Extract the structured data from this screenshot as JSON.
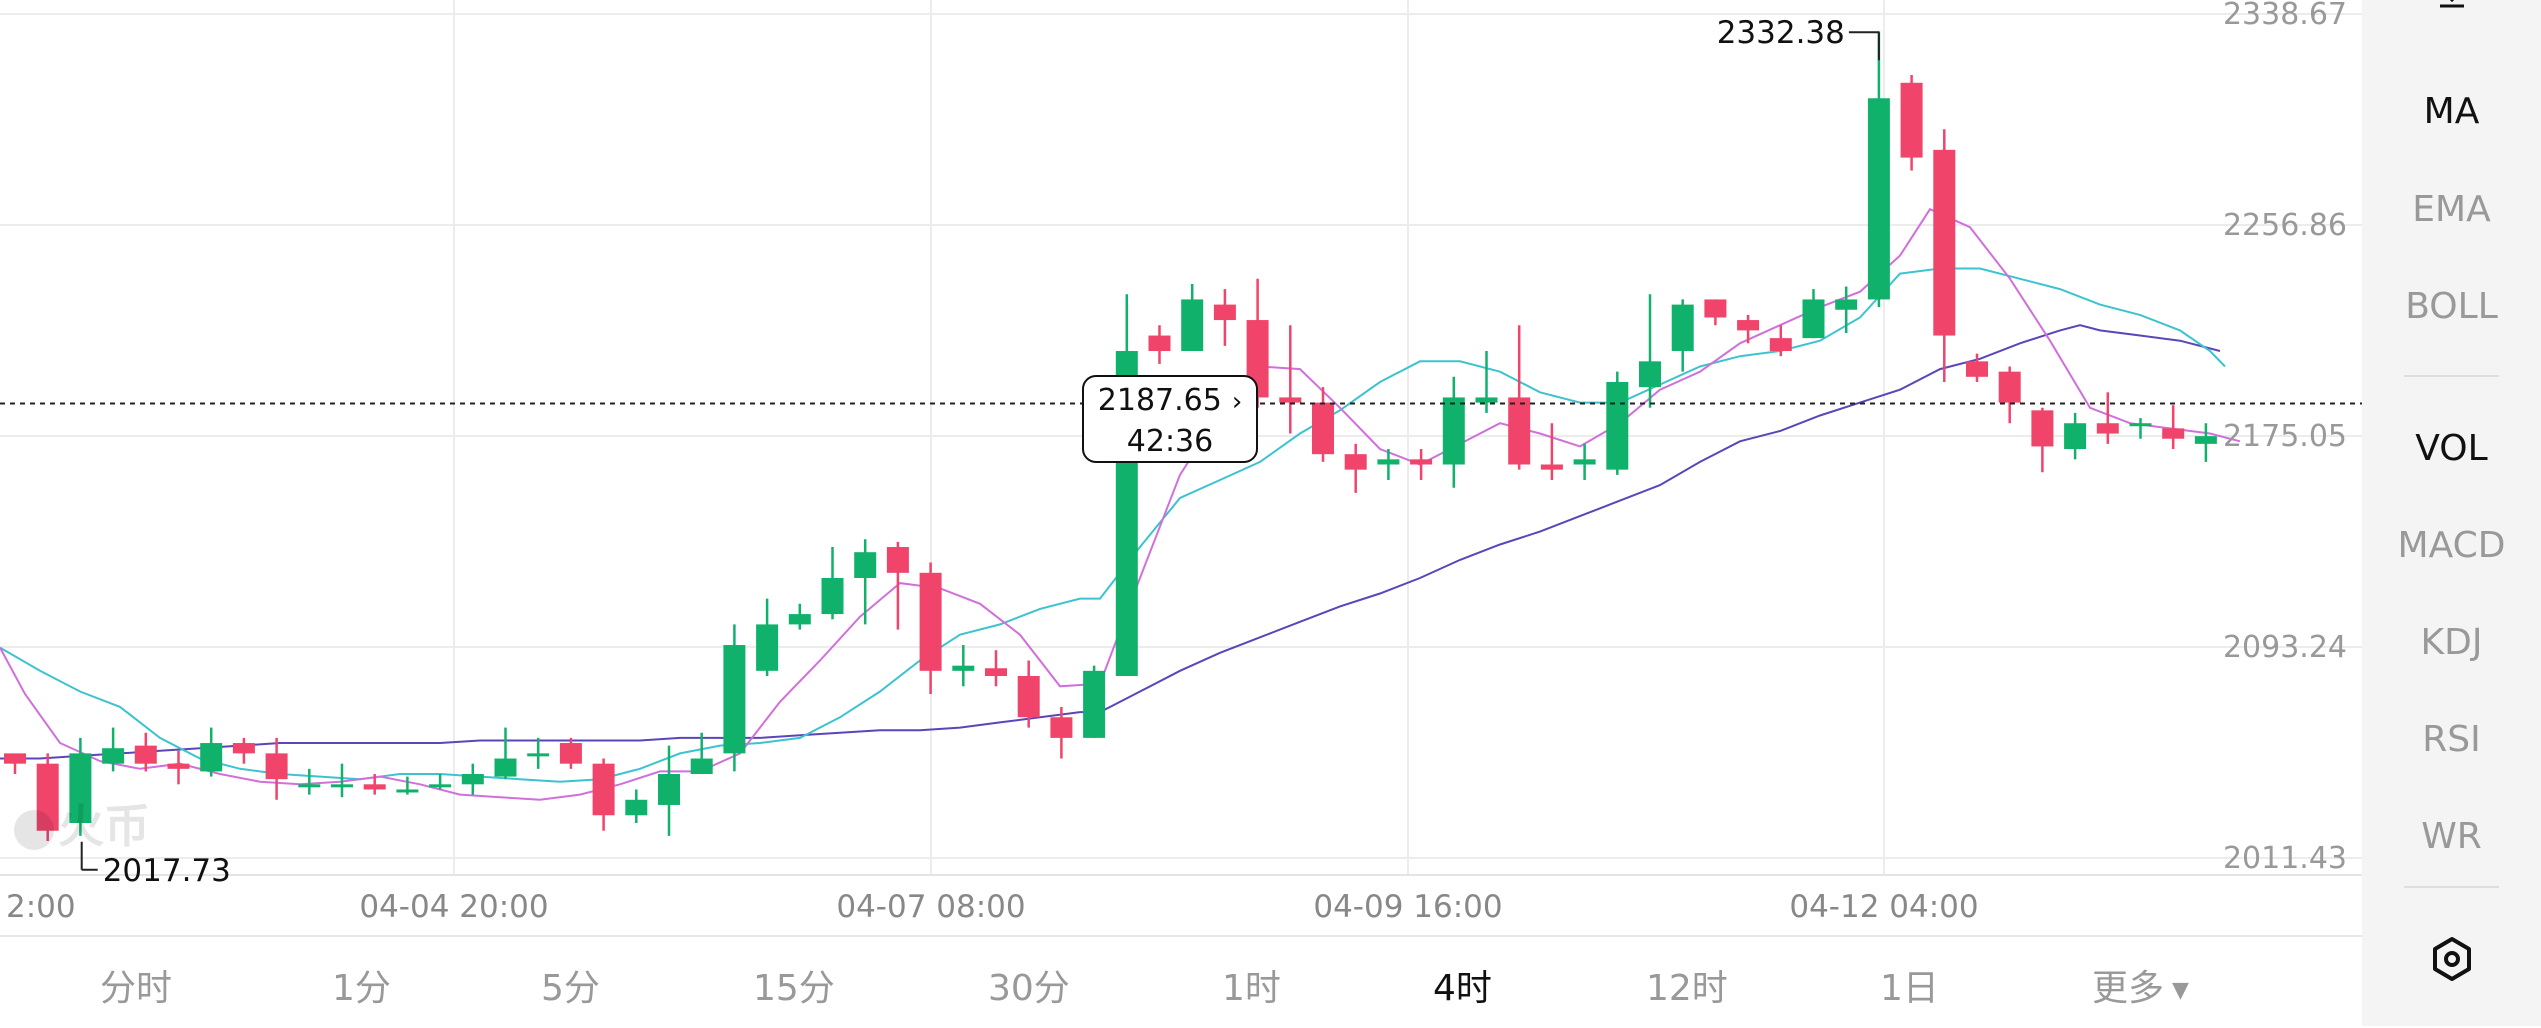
{
  "chart_data": {
    "type": "candlestick",
    "interval": "4时",
    "y_ticks": [
      "2338.67",
      "2256.86",
      "2175.05",
      "2093.24",
      "2011.43"
    ],
    "ylim": [
      2003,
      2341
    ],
    "x_ticks": [
      "2:00",
      "04-04 20:00",
      "04-07 08:00",
      "04-09 16:00",
      "04-12 04:00"
    ],
    "current_price": 2187.65,
    "countdown": "42:36",
    "max_label": "2332.38",
    "min_label": "2017.73",
    "candles": [
      [
        2052,
        2048,
        2050,
        2044
      ],
      [
        2048,
        2022,
        2052,
        2018
      ],
      [
        2025,
        2052,
        2058,
        2020
      ],
      [
        2048,
        2054,
        2062,
        2045
      ],
      [
        2055,
        2048,
        2060,
        2045
      ],
      [
        2048,
        2046,
        2053,
        2040
      ],
      [
        2045,
        2056,
        2062,
        2043
      ],
      [
        2056,
        2052,
        2058,
        2048
      ],
      [
        2052,
        2042,
        2058,
        2034
      ],
      [
        2040,
        2040,
        2046,
        2036
      ],
      [
        2040,
        2040,
        2048,
        2035
      ],
      [
        2040,
        2038,
        2044,
        2036
      ],
      [
        2038,
        2038,
        2043,
        2036
      ],
      [
        2040,
        2040,
        2044,
        2038
      ],
      [
        2040,
        2044,
        2048,
        2036
      ],
      [
        2043,
        2050,
        2062,
        2042
      ],
      [
        2052,
        2052,
        2058,
        2046
      ],
      [
        2056,
        2048,
        2058,
        2046
      ],
      [
        2048,
        2028,
        2050,
        2022
      ],
      [
        2028,
        2034,
        2038,
        2025
      ],
      [
        2032,
        2044,
        2055,
        2020
      ],
      [
        2044,
        2050,
        2060,
        2044
      ],
      [
        2052,
        2094,
        2102,
        2045
      ],
      [
        2084,
        2102,
        2112,
        2082
      ],
      [
        2102,
        2106,
        2110,
        2100
      ],
      [
        2106,
        2120,
        2132,
        2104
      ],
      [
        2120,
        2130,
        2135,
        2102
      ],
      [
        2132,
        2122,
        2134,
        2100
      ],
      [
        2122,
        2084,
        2126,
        2075
      ],
      [
        2084,
        2086,
        2094,
        2078
      ],
      [
        2085,
        2082,
        2092,
        2078
      ],
      [
        2082,
        2066,
        2088,
        2062
      ],
      [
        2066,
        2058,
        2070,
        2050
      ],
      [
        2058,
        2084,
        2086,
        2058
      ],
      [
        2082,
        2208,
        2230,
        2082
      ],
      [
        2214,
        2208,
        2218,
        2203
      ],
      [
        2208,
        2228,
        2234,
        2208
      ],
      [
        2226,
        2220,
        2232,
        2210
      ],
      [
        2220,
        2190,
        2236,
        2186
      ],
      [
        2190,
        2188,
        2218,
        2176
      ],
      [
        2188,
        2168,
        2194,
        2165
      ],
      [
        2168,
        2162,
        2172,
        2153
      ],
      [
        2164,
        2166,
        2170,
        2158
      ],
      [
        2166,
        2164,
        2170,
        2158
      ],
      [
        2164,
        2190,
        2198,
        2155
      ],
      [
        2188,
        2190,
        2208,
        2184
      ],
      [
        2190,
        2164,
        2218,
        2162
      ],
      [
        2164,
        2162,
        2180,
        2158
      ],
      [
        2164,
        2166,
        2172,
        2158
      ],
      [
        2162,
        2196,
        2200,
        2160
      ],
      [
        2194,
        2204,
        2230,
        2186
      ],
      [
        2208,
        2226,
        2228,
        2200
      ],
      [
        2228,
        2221,
        2228,
        2218
      ],
      [
        2220,
        2216,
        2222,
        2211
      ],
      [
        2213,
        2208,
        2218,
        2206
      ],
      [
        2213,
        2228,
        2232,
        2213
      ],
      [
        2224,
        2228,
        2233,
        2215
      ],
      [
        2228,
        2306,
        2332,
        2225
      ],
      [
        2312,
        2283,
        2315,
        2278
      ],
      [
        2286,
        2214,
        2294,
        2196
      ],
      [
        2204,
        2198,
        2207,
        2196
      ],
      [
        2200,
        2188,
        2202,
        2180
      ],
      [
        2185,
        2171,
        2186,
        2161
      ],
      [
        2170,
        2180,
        2184,
        2166
      ],
      [
        2180,
        2176,
        2192,
        2172
      ],
      [
        2180,
        2180,
        2182,
        2174
      ],
      [
        2178,
        2174,
        2187,
        2170
      ],
      [
        2172,
        2175,
        2180,
        2165
      ]
    ],
    "ma_short": [
      [
        0,
        2093
      ],
      [
        25,
        2075
      ],
      [
        60,
        2056
      ],
      [
        100,
        2049
      ],
      [
        140,
        2046
      ],
      [
        180,
        2048
      ],
      [
        220,
        2044
      ],
      [
        260,
        2041
      ],
      [
        300,
        2040
      ],
      [
        340,
        2041
      ],
      [
        380,
        2043
      ],
      [
        420,
        2040
      ],
      [
        460,
        2036
      ],
      [
        500,
        2035
      ],
      [
        540,
        2034
      ],
      [
        580,
        2036
      ],
      [
        620,
        2040
      ],
      [
        660,
        2045
      ],
      [
        700,
        2045
      ],
      [
        740,
        2052
      ],
      [
        780,
        2072
      ],
      [
        820,
        2088
      ],
      [
        860,
        2105
      ],
      [
        900,
        2118
      ],
      [
        940,
        2116
      ],
      [
        980,
        2110
      ],
      [
        1020,
        2098
      ],
      [
        1060,
        2078
      ],
      [
        1100,
        2079
      ],
      [
        1140,
        2120
      ],
      [
        1180,
        2160
      ],
      [
        1220,
        2184
      ],
      [
        1260,
        2202
      ],
      [
        1300,
        2201
      ],
      [
        1340,
        2186
      ],
      [
        1380,
        2170
      ],
      [
        1420,
        2164
      ],
      [
        1460,
        2172
      ],
      [
        1500,
        2180
      ],
      [
        1540,
        2176
      ],
      [
        1580,
        2171
      ],
      [
        1620,
        2180
      ],
      [
        1660,
        2193
      ],
      [
        1700,
        2200
      ],
      [
        1740,
        2211
      ],
      [
        1780,
        2218
      ],
      [
        1820,
        2225
      ],
      [
        1860,
        2231
      ],
      [
        1900,
        2245
      ],
      [
        1930,
        2263
      ],
      [
        1970,
        2256
      ],
      [
        2010,
        2236
      ],
      [
        2050,
        2212
      ],
      [
        2090,
        2186
      ],
      [
        2130,
        2180
      ],
      [
        2170,
        2178
      ],
      [
        2210,
        2176
      ],
      [
        2240,
        2173
      ]
    ],
    "ma_mid": [
      [
        0,
        2093
      ],
      [
        40,
        2084
      ],
      [
        80,
        2076
      ],
      [
        120,
        2070
      ],
      [
        160,
        2058
      ],
      [
        200,
        2050
      ],
      [
        240,
        2046
      ],
      [
        280,
        2044
      ],
      [
        320,
        2043
      ],
      [
        360,
        2042
      ],
      [
        400,
        2044
      ],
      [
        440,
        2044
      ],
      [
        480,
        2043
      ],
      [
        520,
        2042
      ],
      [
        560,
        2041
      ],
      [
        600,
        2042
      ],
      [
        640,
        2046
      ],
      [
        680,
        2052
      ],
      [
        720,
        2055
      ],
      [
        760,
        2056
      ],
      [
        800,
        2058
      ],
      [
        840,
        2066
      ],
      [
        880,
        2076
      ],
      [
        920,
        2088
      ],
      [
        960,
        2098
      ],
      [
        1000,
        2102
      ],
      [
        1040,
        2108
      ],
      [
        1080,
        2112
      ],
      [
        1100,
        2112
      ],
      [
        1140,
        2132
      ],
      [
        1180,
        2151
      ],
      [
        1220,
        2158
      ],
      [
        1260,
        2165
      ],
      [
        1300,
        2176
      ],
      [
        1340,
        2185
      ],
      [
        1380,
        2196
      ],
      [
        1420,
        2204
      ],
      [
        1460,
        2204
      ],
      [
        1500,
        2200
      ],
      [
        1540,
        2192
      ],
      [
        1580,
        2188
      ],
      [
        1620,
        2188
      ],
      [
        1660,
        2195
      ],
      [
        1700,
        2202
      ],
      [
        1740,
        2206
      ],
      [
        1780,
        2208
      ],
      [
        1820,
        2212
      ],
      [
        1860,
        2221
      ],
      [
        1900,
        2238
      ],
      [
        1940,
        2240
      ],
      [
        1980,
        2240
      ],
      [
        2020,
        2236
      ],
      [
        2060,
        2232
      ],
      [
        2100,
        2226
      ],
      [
        2140,
        2222
      ],
      [
        2180,
        2216
      ],
      [
        2210,
        2208
      ],
      [
        2225,
        2202
      ]
    ],
    "ma_long": [
      [
        0,
        2050
      ],
      [
        40,
        2050
      ],
      [
        80,
        2051
      ],
      [
        120,
        2052
      ],
      [
        160,
        2053
      ],
      [
        200,
        2054
      ],
      [
        240,
        2055
      ],
      [
        280,
        2056
      ],
      [
        320,
        2056
      ],
      [
        360,
        2056
      ],
      [
        400,
        2056
      ],
      [
        440,
        2056
      ],
      [
        480,
        2057
      ],
      [
        520,
        2057
      ],
      [
        560,
        2057
      ],
      [
        600,
        2057
      ],
      [
        640,
        2057
      ],
      [
        680,
        2058
      ],
      [
        720,
        2058
      ],
      [
        760,
        2058
      ],
      [
        800,
        2059
      ],
      [
        840,
        2060
      ],
      [
        880,
        2061
      ],
      [
        920,
        2061
      ],
      [
        960,
        2062
      ],
      [
        1000,
        2064
      ],
      [
        1040,
        2066
      ],
      [
        1080,
        2068
      ],
      [
        1100,
        2068
      ],
      [
        1140,
        2076
      ],
      [
        1180,
        2084
      ],
      [
        1220,
        2091
      ],
      [
        1260,
        2097
      ],
      [
        1300,
        2103
      ],
      [
        1340,
        2109
      ],
      [
        1380,
        2114
      ],
      [
        1420,
        2120
      ],
      [
        1460,
        2127
      ],
      [
        1500,
        2133
      ],
      [
        1540,
        2138
      ],
      [
        1580,
        2144
      ],
      [
        1620,
        2150
      ],
      [
        1660,
        2156
      ],
      [
        1700,
        2165
      ],
      [
        1740,
        2173
      ],
      [
        1780,
        2177
      ],
      [
        1820,
        2183
      ],
      [
        1860,
        2188
      ],
      [
        1900,
        2193
      ],
      [
        1940,
        2201
      ],
      [
        1980,
        2205
      ],
      [
        2020,
        2211
      ],
      [
        2060,
        2216
      ],
      [
        2080,
        2218
      ],
      [
        2100,
        2216
      ],
      [
        2140,
        2214
      ],
      [
        2180,
        2212
      ],
      [
        2220,
        2208
      ]
    ],
    "colors": {
      "up": "#10b26b",
      "down": "#f0446b",
      "ma_short": "#d16fdb",
      "ma_mid": "#3cc3cf",
      "ma_long": "#5b45b8"
    }
  },
  "watermark": "火币",
  "timeframes": [
    "分时",
    "1分",
    "5分",
    "15分",
    "30分",
    "1时",
    "4时",
    "12时",
    "1日",
    "更多"
  ],
  "active_timeframe": "4时",
  "indicators_main": [
    "MA",
    "EMA",
    "BOLL"
  ],
  "indicators_sub": [
    "VOL",
    "MACD",
    "KDJ",
    "RSI",
    "WR"
  ],
  "active_main": "MA",
  "active_sub": "VOL",
  "icons": {
    "settings": "hexagon-settings-icon",
    "more_caret": "caret-down-icon",
    "tooltip_arrow": "chevron-right-icon",
    "download": "download-icon"
  }
}
